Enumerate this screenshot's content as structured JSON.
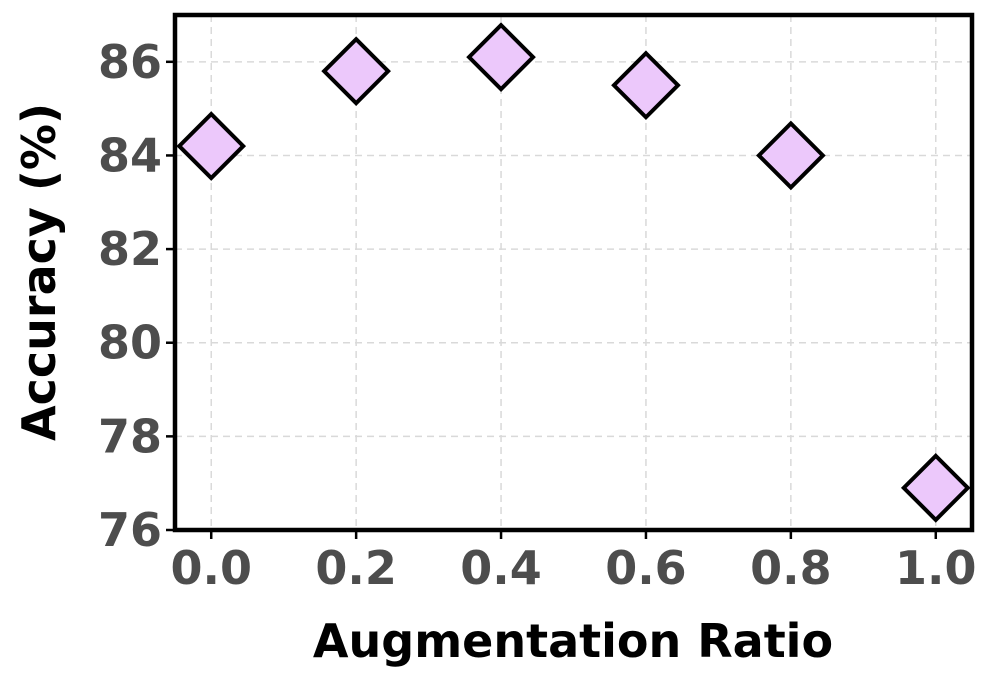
{
  "chart_data": {
    "type": "scatter",
    "title": "",
    "xlabel": "Augmentation Ratio",
    "ylabel": "Accuracy (%)",
    "x": [
      0.0,
      0.2,
      0.4,
      0.6,
      0.8,
      1.0
    ],
    "series": [
      {
        "values": [
          84.2,
          85.8,
          86.1,
          85.5,
          84.0,
          76.9
        ]
      }
    ],
    "xlim": [
      -0.05,
      1.05
    ],
    "ylim": [
      76.0,
      87.0
    ],
    "xticks": [
      0.0,
      0.2,
      0.4,
      0.6,
      0.8,
      1.0
    ],
    "xtick_labels": [
      "0.0",
      "0.2",
      "0.4",
      "0.6",
      "0.8",
      "1.0"
    ],
    "yticks": [
      76,
      78,
      80,
      82,
      84,
      86
    ],
    "ytick_labels": [
      "76",
      "78",
      "80",
      "82",
      "84",
      "86"
    ],
    "marker": "diamond",
    "marker_color": "#ecc8fb",
    "marker_edge_color": "#000000",
    "grid": true,
    "grid_color": "#d9d9d9",
    "grid_style": "dashed",
    "tick_label_color": "#4d4d4d",
    "axis_title_color": "#000000",
    "frame_color": "#000000",
    "legend": "none"
  }
}
